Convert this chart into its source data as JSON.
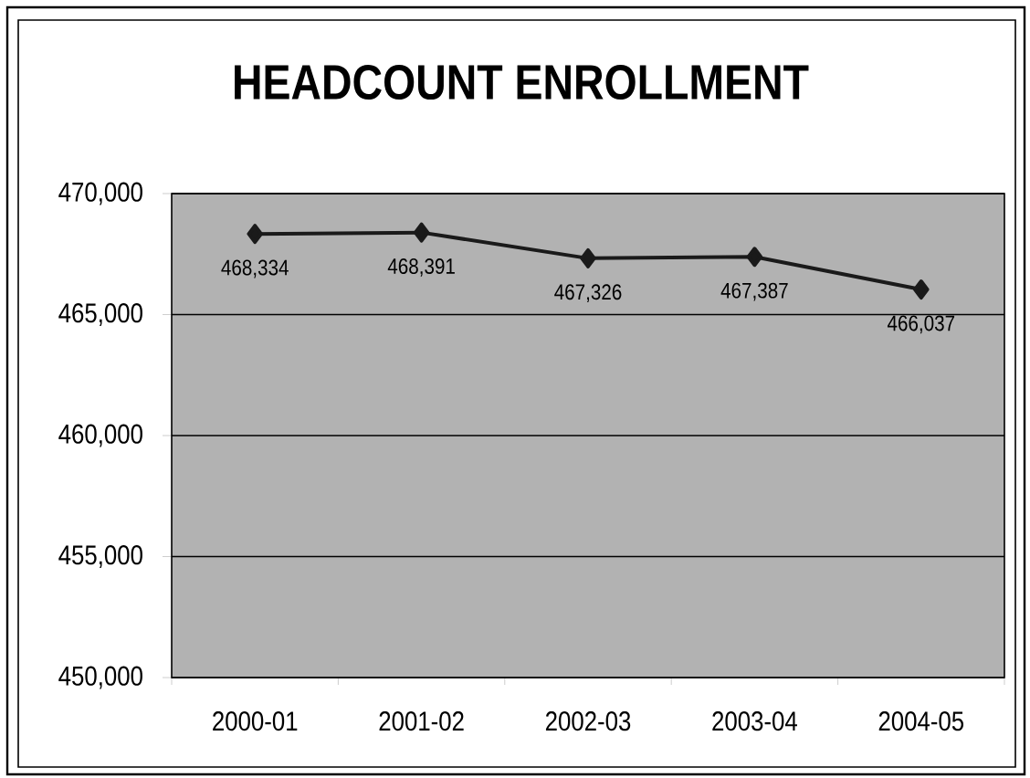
{
  "chart_data": {
    "type": "line",
    "title": "HEADCOUNT ENROLLMENT",
    "categories": [
      "2000-01",
      "2001-02",
      "2002-03",
      "2003-04",
      "2004-05"
    ],
    "values": [
      468334,
      468391,
      467326,
      467387,
      466037
    ],
    "value_labels": [
      "468,334",
      "468,391",
      "467,326",
      "467,387",
      "466,037"
    ],
    "color": "#1a1a1a",
    "marker": "diamond",
    "ylim": [
      450000,
      470000
    ],
    "yticks": [
      {
        "value": 450000,
        "label": "450,000"
      },
      {
        "value": 455000,
        "label": "455,000"
      },
      {
        "value": 460000,
        "label": "460,000"
      },
      {
        "value": 465000,
        "label": "465,000"
      },
      {
        "value": 470000,
        "label": "470,000"
      }
    ],
    "grid": "y"
  }
}
